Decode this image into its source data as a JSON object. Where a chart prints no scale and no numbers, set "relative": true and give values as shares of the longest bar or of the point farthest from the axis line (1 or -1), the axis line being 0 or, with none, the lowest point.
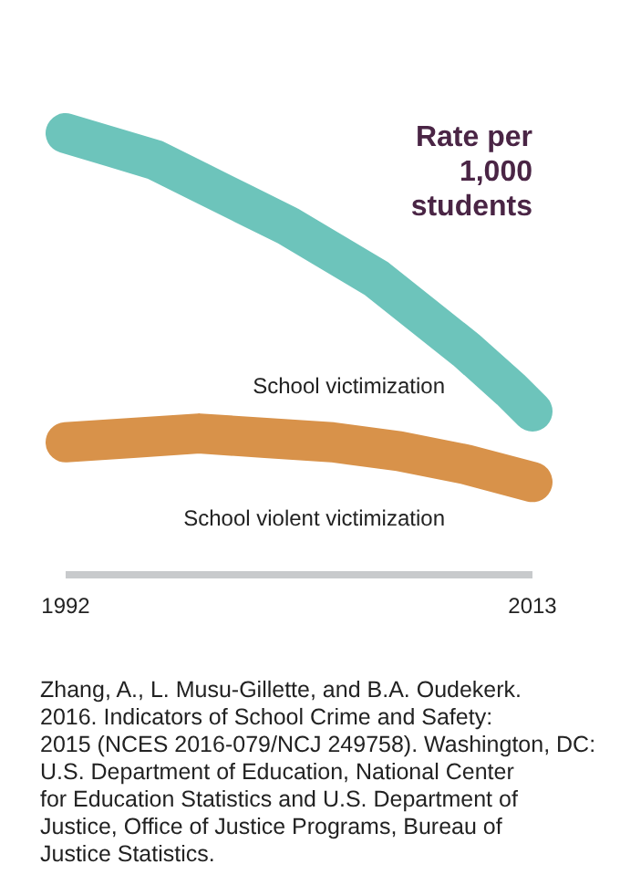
{
  "chart_data": {
    "type": "line",
    "title": "Rate per 1,000 students",
    "relative": true,
    "x": [
      1992,
      1994,
      1996,
      1998,
      2000,
      2002,
      2004,
      2006,
      2008,
      2010,
      2012,
      2013
    ],
    "xlim": [
      1992,
      2013
    ],
    "xticks": [
      1992,
      2013
    ],
    "line_style": "solid",
    "series": [
      {
        "name": "School victimization",
        "color": "#6dc4bb",
        "values": [
          1,
          0.97,
          0.94,
          0.89,
          0.84,
          0.79,
          0.73,
          0.67,
          0.59,
          0.51,
          0.42,
          0.37
        ]
      },
      {
        "name": "School violent victimization",
        "color": "#d8924a",
        "x": [
          1992,
          1995,
          1998,
          2001,
          2004,
          2007,
          2010,
          2013
        ],
        "values": [
          0.3,
          0.31,
          0.32,
          0.31,
          0.3,
          0.28,
          0.25,
          0.21
        ]
      }
    ],
    "annotations": [
      "Zhang, A., L. Musu-Gillette, and B.A. Oudekerk. 2016. Indicators of School Crime and Safety: 2015 (NCES 2016-079/NCJ 249758). Washington, DC: U.S. Department of Education, National Center for Education Statistics and U.S. Department of Justice, Office of Justice Programs, Bureau of Justice Statistics."
    ]
  }
}
